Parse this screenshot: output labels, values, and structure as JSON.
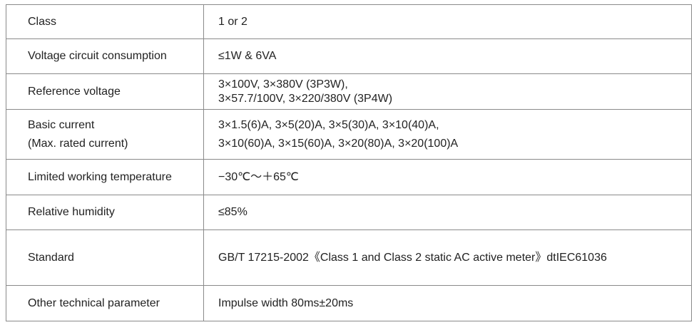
{
  "rows": [
    {
      "label": [
        "Class"
      ],
      "value": [
        "1 or  2"
      ]
    },
    {
      "label": [
        "Voltage circuit consumption"
      ],
      "value": [
        "≤1W & 6VA"
      ]
    },
    {
      "label": [
        "Reference voltage"
      ],
      "value": [
        "3×100V, 3×380V  (3P3W),",
        "3×57.7/100V, 3×220/380V  (3P4W)"
      ]
    },
    {
      "label": [
        "Basic current",
        "(Max. rated current)"
      ],
      "value": [
        "3×1.5(6)A, 3×5(20)A, 3×5(30)A, 3×10(40)A,",
        "3×10(60)A, 3×15(60)A, 3×20(80)A, 3×20(100)A"
      ]
    },
    {
      "label": [
        "Limited working temperature"
      ],
      "value": [
        "−30℃～＋65℃"
      ]
    },
    {
      "label": [
        "Relative humidity"
      ],
      "value": [
        "≤85%"
      ]
    },
    {
      "label": [
        "Standard"
      ],
      "value": [
        "GB/T 17215-2002《Class 1 and Class 2 static  AC active meter》dtIEC61036"
      ]
    },
    {
      "label": [
        "Other technical parameter"
      ],
      "value": [
        "Impulse width 80ms±20ms"
      ]
    }
  ]
}
